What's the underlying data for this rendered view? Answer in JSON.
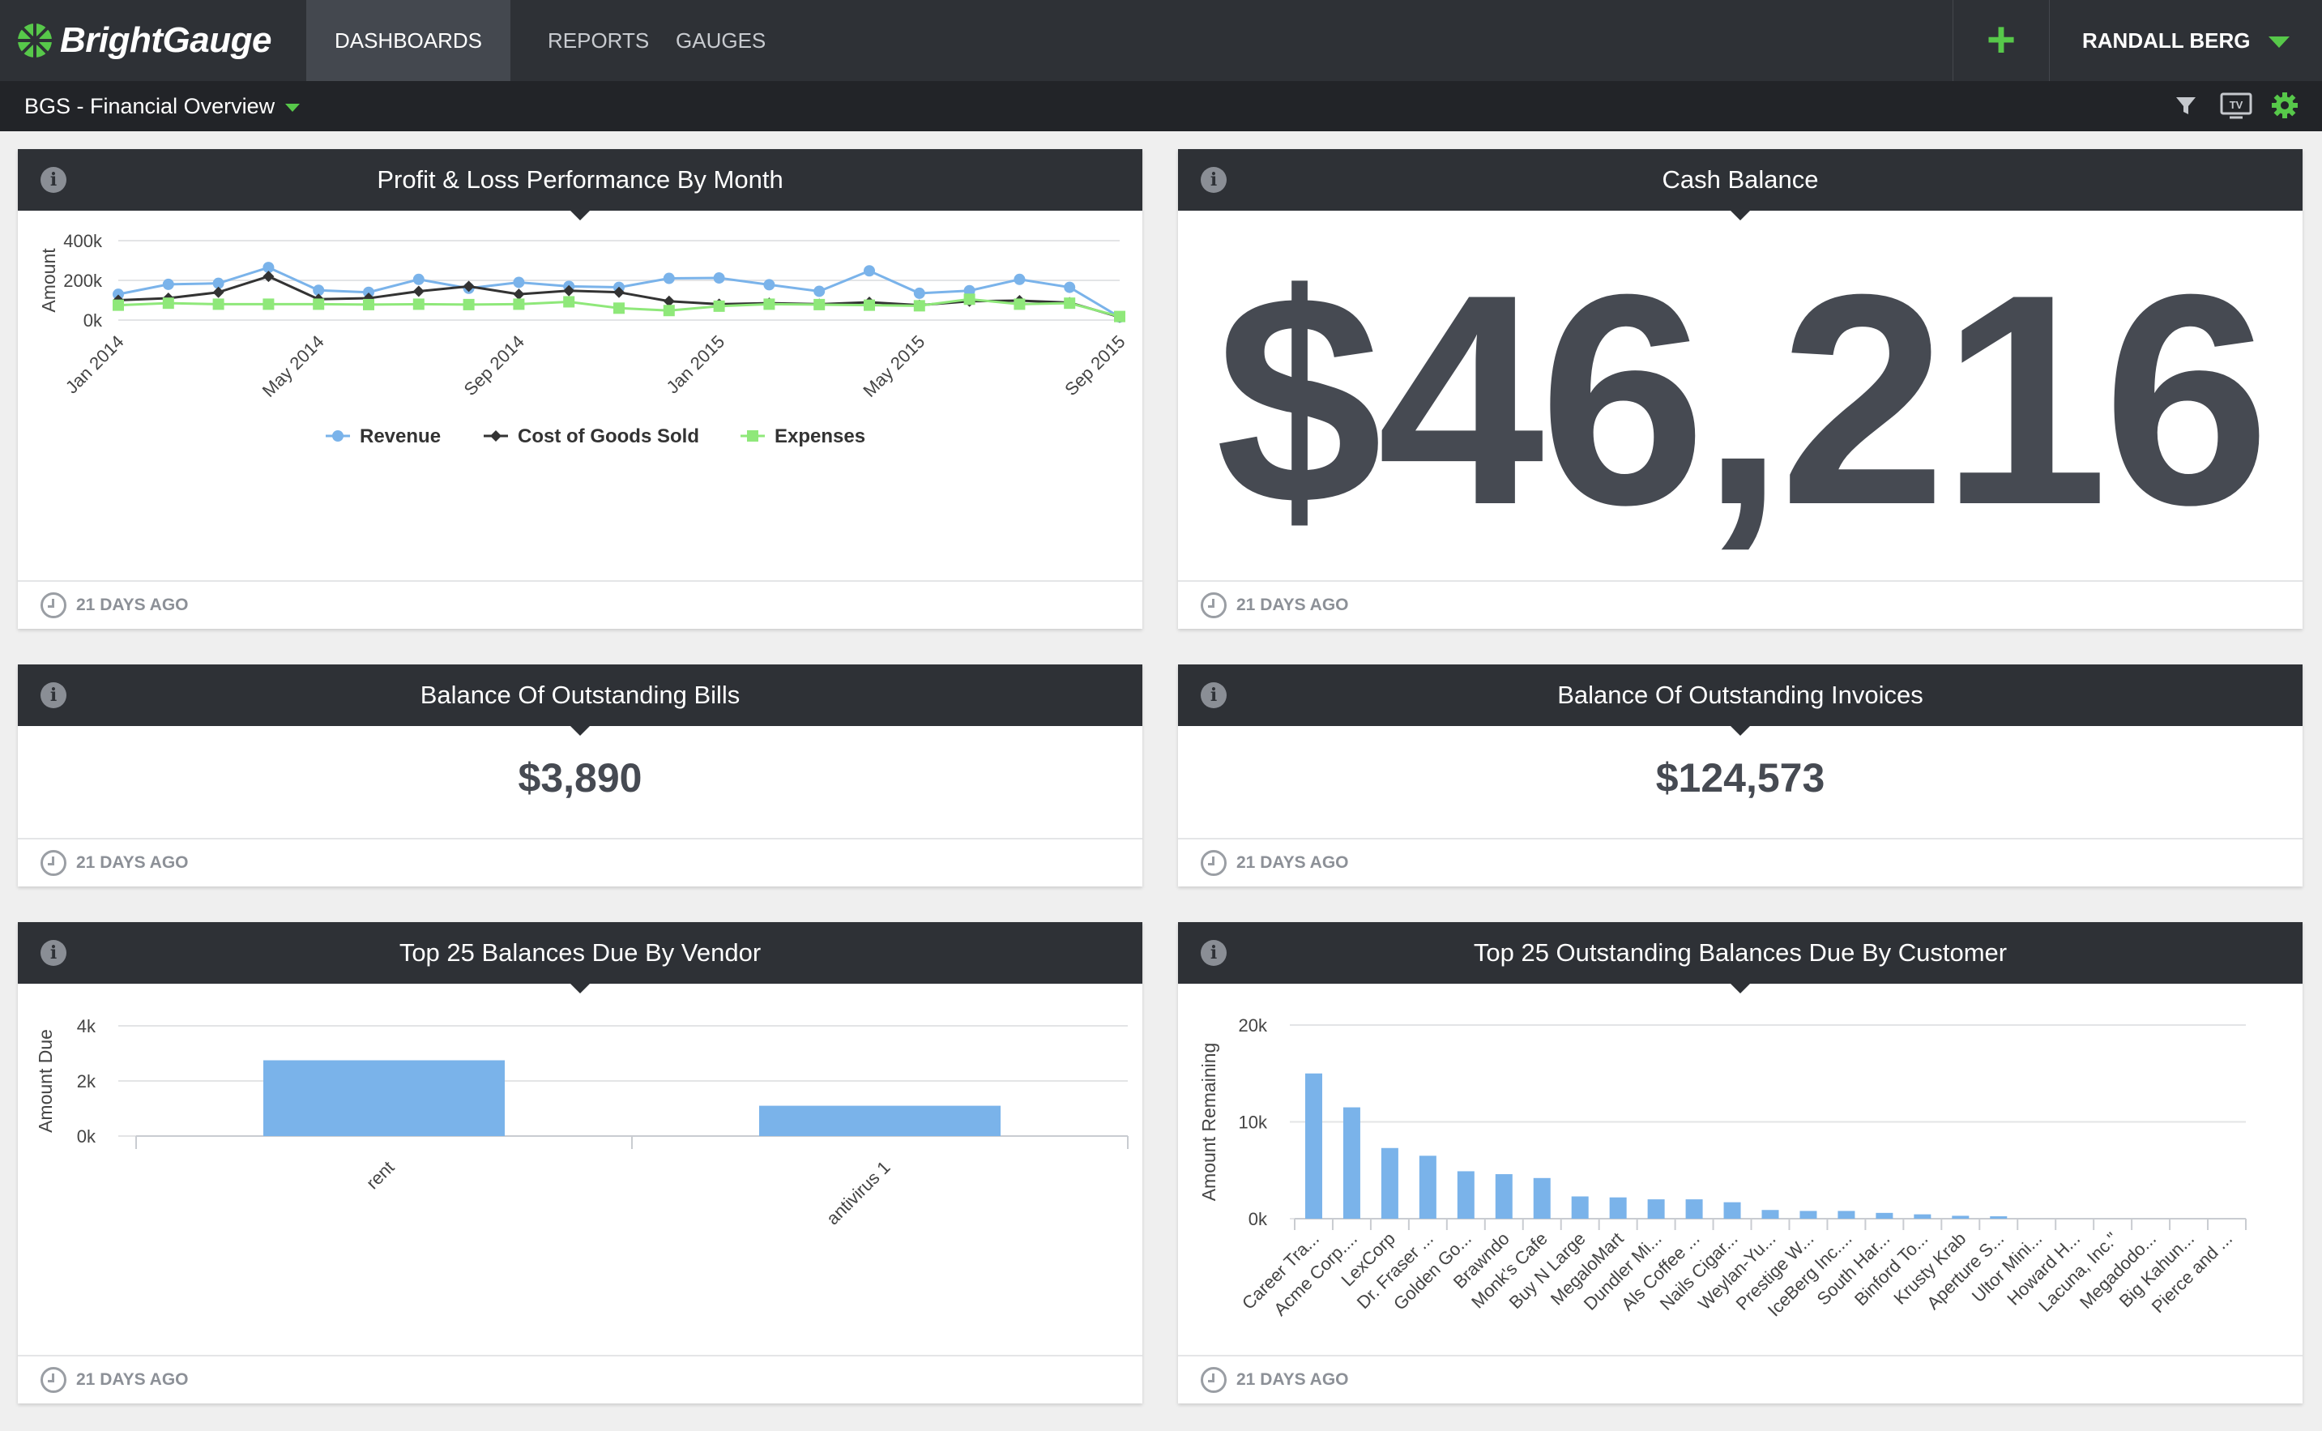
{
  "app": {
    "name": "BrightGauge"
  },
  "nav": {
    "items": [
      {
        "label": "DASHBOARDS",
        "active": true
      },
      {
        "label": "REPORTS",
        "active": false
      },
      {
        "label": "GAUGES",
        "active": false
      }
    ],
    "add_label": "+",
    "user": "RANDALL BERG"
  },
  "subbar": {
    "dashboard_name": "BGS - Financial Overview",
    "tv_label": "TV"
  },
  "colors": {
    "accent": "#57c84a",
    "header": "#2e3136",
    "revenue": "#7ab3ea",
    "cogs": "#333333",
    "expenses": "#8fe87a",
    "bars": "#7ab3ea"
  },
  "panels": {
    "pl": {
      "title": "Profit & Loss Performance By Month",
      "updated": "21 DAYS AGO"
    },
    "cash": {
      "title": "Cash Balance",
      "value": "$46,216",
      "updated": "21 DAYS AGO"
    },
    "bills": {
      "title": "Balance Of Outstanding Bills",
      "value": "$3,890",
      "updated": "21 DAYS AGO"
    },
    "invoices": {
      "title": "Balance Of Outstanding Invoices",
      "value": "$124,573",
      "updated": "21 DAYS AGO"
    },
    "vendor": {
      "title": "Top 25 Balances Due By Vendor",
      "updated": "21 DAYS AGO"
    },
    "customer": {
      "title": "Top 25 Outstanding Balances Due By Customer",
      "updated": "21 DAYS AGO"
    }
  },
  "chart_data": [
    {
      "type": "line",
      "title": "Profit & Loss Performance By Month",
      "ylabel": "Amount",
      "ylim": [
        0,
        400000
      ],
      "yticks": [
        "0k",
        "200k",
        "400k"
      ],
      "x_tick_labels": [
        "Jan 2014",
        "May 2014",
        "Sep 2014",
        "Jan 2015",
        "May 2015",
        "Sep 2015"
      ],
      "series": [
        {
          "name": "Revenue",
          "values": [
            130000,
            180000,
            185000,
            265000,
            150000,
            140000,
            205000,
            160000,
            190000,
            170000,
            165000,
            210000,
            212000,
            178000,
            145000,
            248000,
            135000,
            148000,
            205000,
            165000,
            15000
          ]
        },
        {
          "name": "Cost of Goods Sold",
          "values": [
            100000,
            110000,
            140000,
            220000,
            105000,
            110000,
            145000,
            170000,
            130000,
            148000,
            140000,
            95000,
            80000,
            85000,
            80000,
            90000,
            75000,
            95000,
            98000,
            88000,
            15000
          ]
        },
        {
          "name": "Expenses",
          "values": [
            75000,
            85000,
            80000,
            80000,
            80000,
            78000,
            80000,
            78000,
            80000,
            92000,
            60000,
            48000,
            70000,
            80000,
            78000,
            75000,
            72000,
            105000,
            80000,
            85000,
            18000
          ]
        }
      ],
      "legend": "bottom",
      "grid": true
    },
    {
      "type": "bar",
      "title": "Top 25 Balances Due By Vendor",
      "ylabel": "Amount Due",
      "ylim": [
        0,
        4000
      ],
      "yticks": [
        "0k",
        "2k",
        "4k"
      ],
      "categories": [
        "rent",
        "antivirus 1"
      ],
      "values": [
        2750,
        1100
      ]
    },
    {
      "type": "bar",
      "title": "Top 25 Outstanding Balances Due By Customer",
      "ylabel": "Amount Remaining",
      "ylim": [
        0,
        20000
      ],
      "yticks": [
        "0k",
        "10k",
        "20k"
      ],
      "categories": [
        "Career Tra...",
        "Acme Corp....",
        "LexCorp",
        "Dr. Fraser ...",
        "Golden Go...",
        "Brawndo",
        "Monk's Cafe",
        "Buy N Large",
        "MegaloMart",
        "Dundler Mi...",
        "Als Coffee ...",
        "Nails Cigar...",
        "Weylan-Yu...",
        "Prestige W...",
        "IceBerg Inc....",
        "South Har...",
        "Binford To...",
        "Krusty Krab",
        "Aperture S...",
        "Ultor Mini...",
        "Howard H...",
        "Lacuna, Inc.\"",
        "Megadodo...",
        "Big Kahun...",
        "Pierce and ..."
      ],
      "values": [
        15000,
        11500,
        7300,
        6500,
        4900,
        4600,
        4200,
        2300,
        2200,
        2000,
        2000,
        1700,
        900,
        800,
        800,
        600,
        450,
        300,
        250,
        0,
        0,
        0,
        0,
        0,
        0
      ]
    }
  ]
}
